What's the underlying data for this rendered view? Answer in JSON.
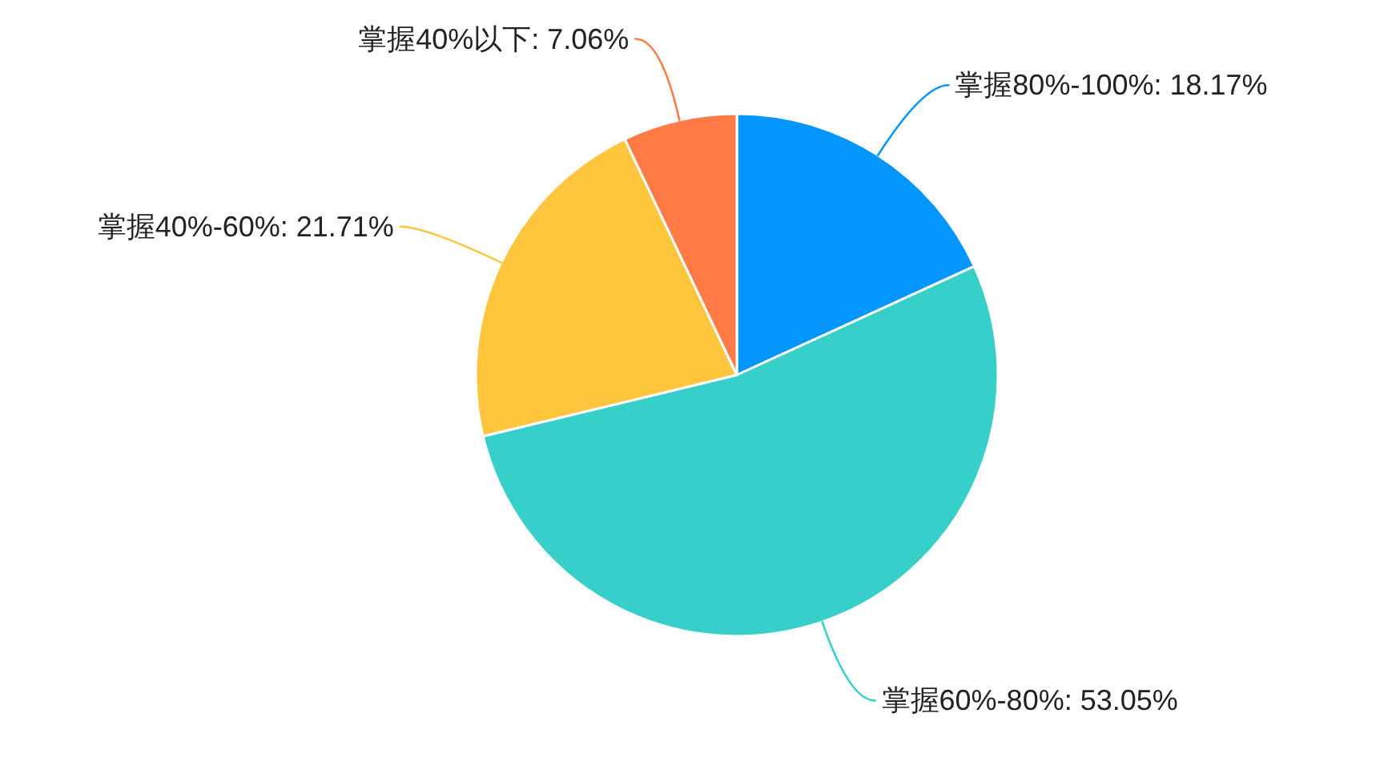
{
  "chart_data": {
    "type": "pie",
    "categories": [
      "掌握80%-100%",
      "掌握60%-80%",
      "掌握40%-60%",
      "掌握40%以下"
    ],
    "values": [
      18.17,
      53.05,
      21.71,
      7.06
    ],
    "colors": [
      "#0396ff",
      "#36cfc9",
      "#ffc53d",
      "#ff7a45"
    ],
    "value_labels": [
      "18.17%",
      "53.05%",
      "21.71%",
      "7.06%"
    ]
  }
}
